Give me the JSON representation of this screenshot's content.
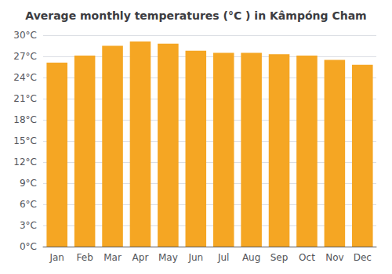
{
  "chart_data": {
    "type": "bar",
    "title": "Average monthly temperatures (°C ) in Kâmpóng Cham",
    "categories": [
      "Jan",
      "Feb",
      "Mar",
      "Apr",
      "May",
      "Jun",
      "Jul",
      "Aug",
      "Sep",
      "Oct",
      "Nov",
      "Dec"
    ],
    "values": [
      26.1,
      27.1,
      28.5,
      29.1,
      28.8,
      27.8,
      27.5,
      27.5,
      27.3,
      27.1,
      26.5,
      25.8
    ],
    "color": "#F5A623",
    "ylim": [
      0,
      30
    ],
    "yticks": [
      {
        "value": 0,
        "label": "0°C"
      },
      {
        "value": 3,
        "label": "3°C"
      },
      {
        "value": 6,
        "label": "6°C"
      },
      {
        "value": 9,
        "label": "9°C"
      },
      {
        "value": 12,
        "label": "12°C"
      },
      {
        "value": 15,
        "label": "15°C"
      },
      {
        "value": 18,
        "label": "18°C"
      },
      {
        "value": 21,
        "label": "21°C"
      },
      {
        "value": 24,
        "label": "24°C"
      },
      {
        "value": 27,
        "label": "27°C"
      },
      {
        "value": 30,
        "label": "30°C"
      }
    ],
    "grid": true
  }
}
